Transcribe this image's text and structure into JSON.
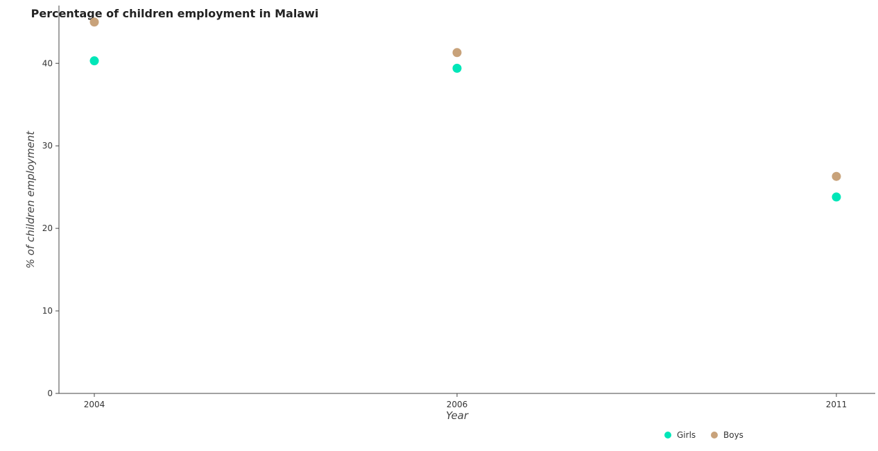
{
  "chart_data": {
    "type": "scatter",
    "title": "Percentage of children employment in Malawi",
    "xlabel": "Year",
    "ylabel": "% of children employment",
    "categories": [
      "2004",
      "2006",
      "2011"
    ],
    "series": [
      {
        "name": "Girls",
        "color": "#00e6b8",
        "values": [
          40.3,
          39.4,
          23.8
        ]
      },
      {
        "name": "Boys",
        "color": "#c8a27a",
        "values": [
          45.0,
          41.3,
          26.3
        ]
      }
    ],
    "ylim": [
      0,
      47
    ],
    "yticks": [
      0,
      10,
      20,
      30,
      40
    ],
    "grid": false,
    "legend_position": "bottom-right"
  }
}
